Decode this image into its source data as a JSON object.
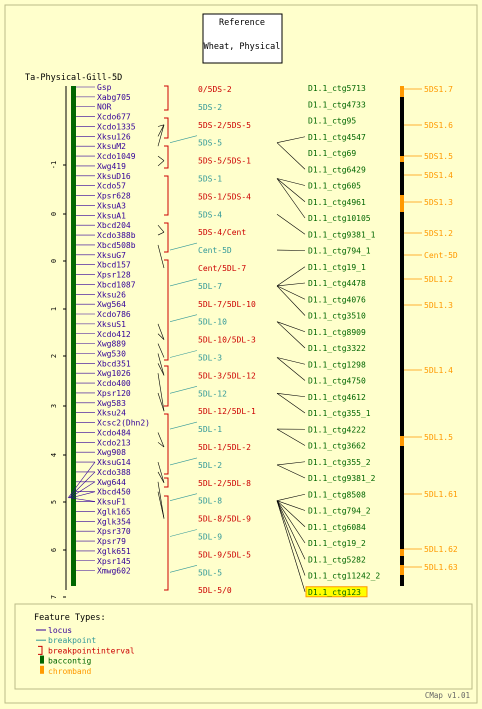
{
  "page": {
    "background": "#ffffcc",
    "border_color": "#bbbb88",
    "footer": "CMap v1.01"
  },
  "reference_box": {
    "line1": "Reference",
    "line2": "Wheat, Physical"
  },
  "map_title": "Ta-Physical-Gill-5D",
  "colors": {
    "locus": "#330099",
    "breakpoint": "#339999",
    "breakpointinterval": "#cc0000",
    "baccontig": "#006600",
    "baccontig_label": "#006600",
    "chromband": "#ff9900",
    "chromband_label": "#ff9900",
    "correspondence": "#000000",
    "highlight": "#ffff00",
    "axis": "#000000"
  },
  "axis": {
    "ticks": [
      "-1",
      "0",
      "0",
      "1",
      "2",
      "3",
      "4",
      "5",
      "6",
      "7"
    ]
  },
  "loci": [
    "Gsp",
    "Xabg705",
    "NOR",
    "Xcdo677",
    "Xcdo1335",
    "Xksu126",
    "XksuM2",
    "Xcdo1049",
    "Xwg419",
    "XksuD16",
    "Xcdo57",
    "Xpsr628",
    "XksuA3",
    "XksuA1",
    "Xbcd204",
    "Xcdo388b",
    "Xbcd508b",
    "XksuG7",
    "Xbcd157",
    "Xpsr128",
    "Xbcd1087",
    "Xksu26",
    "Xwg564",
    "Xcdo786",
    "XksuS1",
    "Xcdo412",
    "Xwg889",
    "Xwg530",
    "Xbcd351",
    "Xwg1026",
    "Xcdo400",
    "Xpsr120",
    "Xwg583",
    "Xksu24",
    "Xcsc2(Dhn2)",
    "Xcdo484",
    "Xcdo213",
    "Xwg908",
    "XksuG14",
    "Xcdo388",
    "Xwg644",
    "Xbcd450",
    "XksuF1",
    "Xglk165",
    "Xglk354",
    "Xpsr370",
    "Xpsr79",
    "Xglk651",
    "Xpsr145",
    "Xmwg602"
  ],
  "breakpoints": [
    {
      "label": "0/5DS-2",
      "type": "breakpointinterval"
    },
    {
      "label": "5DS-2",
      "type": "breakpoint"
    },
    {
      "label": "5DS-2/5DS-5",
      "type": "breakpointinterval"
    },
    {
      "label": "5DS-5",
      "type": "breakpoint"
    },
    {
      "label": "5DS-5/5DS-1",
      "type": "breakpointinterval"
    },
    {
      "label": "5DS-1",
      "type": "breakpoint"
    },
    {
      "label": "5DS-1/5DS-4",
      "type": "breakpointinterval"
    },
    {
      "label": "5DS-4",
      "type": "breakpoint"
    },
    {
      "label": "5DS-4/Cent",
      "type": "breakpointinterval"
    },
    {
      "label": "Cent-5D",
      "type": "breakpoint"
    },
    {
      "label": "Cent/5DL-7",
      "type": "breakpointinterval"
    },
    {
      "label": "5DL-7",
      "type": "breakpoint"
    },
    {
      "label": "5DL-7/5DL-10",
      "type": "breakpointinterval"
    },
    {
      "label": "5DL-10",
      "type": "breakpoint"
    },
    {
      "label": "5DL-10/5DL-3",
      "type": "breakpointinterval"
    },
    {
      "label": "5DL-3",
      "type": "breakpoint"
    },
    {
      "label": "5DL-3/5DL-12",
      "type": "breakpointinterval"
    },
    {
      "label": "5DL-12",
      "type": "breakpoint"
    },
    {
      "label": "5DL-12/5DL-1",
      "type": "breakpointinterval"
    },
    {
      "label": "5DL-1",
      "type": "breakpoint"
    },
    {
      "label": "5DL-1/5DL-2",
      "type": "breakpointinterval"
    },
    {
      "label": "5DL-2",
      "type": "breakpoint"
    },
    {
      "label": "5DL-2/5DL-8",
      "type": "breakpointinterval"
    },
    {
      "label": "5DL-8",
      "type": "breakpoint"
    },
    {
      "label": "5DL-8/5DL-9",
      "type": "breakpointinterval"
    },
    {
      "label": "5DL-9",
      "type": "breakpoint"
    },
    {
      "label": "5DL-9/5DL-5",
      "type": "breakpointinterval"
    },
    {
      "label": "5DL-5",
      "type": "breakpoint"
    },
    {
      "label": "5DL-5/0",
      "type": "breakpointinterval"
    }
  ],
  "contigs": [
    "D1.1_ctg5713",
    "D1.1_ctg4733",
    "D1.1_ctg95",
    "D1.1_ctg4547",
    "D1.1_ctg69",
    "D1.1_ctg6429",
    "D1.1_ctg605",
    "D1.1_ctg4961",
    "D1.1_ctg10105",
    "D1.1_ctg9381_1",
    "D1.1_ctg794_1",
    "D1.1_ctg19_1",
    "D1.1_ctg4478",
    "D1.1_ctg4076",
    "D1.1_ctg3510",
    "D1.1_ctg8909",
    "D1.1_ctg3322",
    "D1.1_ctg1298",
    "D1.1_ctg4750",
    "D1.1_ctg4612",
    "D1.1_ctg355_1",
    "D1.1_ctg4222",
    "D1.1_ctg3662",
    "D1.1_ctg355_2",
    "D1.1_ctg9381_2",
    "D1.1_ctg8508",
    "D1.1_ctg794_2",
    "D1.1_ctg6084",
    "D1.1_ctg19_2",
    "D1.1_ctg5282",
    "D1.1_ctg11242_2",
    "D1.1_ctg123"
  ],
  "highlighted_contig": "D1.1_ctg123",
  "chrombands": [
    "5DS1.7",
    "5DS1.6",
    "5DS1.5",
    "5DS1.4",
    "5DS1.3",
    "5DS1.2",
    "Cent-5D",
    "5DL1.2",
    "5DL1.3",
    "5DL1.4",
    "5DL1.5",
    "5DL1.61",
    "5DL1.62",
    "5DL1.63"
  ],
  "legend": {
    "title": "Feature Types:",
    "items": [
      {
        "label": "locus",
        "key": "locus",
        "glyph": "line"
      },
      {
        "label": "breakpoint",
        "key": "breakpoint",
        "glyph": "line"
      },
      {
        "label": "breakpointinterval",
        "key": "breakpointinterval",
        "glyph": "bracket"
      },
      {
        "label": "baccontig",
        "key": "baccontig",
        "glyph": "box"
      },
      {
        "label": "chromband",
        "key": "chromband",
        "glyph": "box"
      }
    ]
  }
}
